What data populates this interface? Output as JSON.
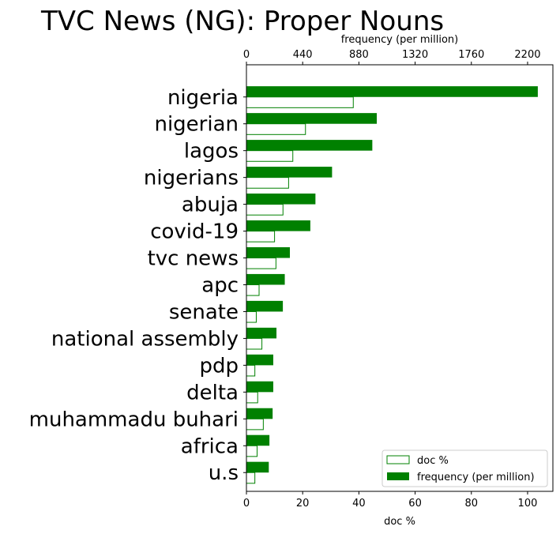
{
  "chart_data": {
    "type": "bar",
    "title": "TVC News (NG): Proper Nouns",
    "categories": [
      "nigeria",
      "nigerian",
      "lagos",
      "nigerians",
      "abuja",
      "covid-19",
      "tvc news",
      "apc",
      "senate",
      "national assembly",
      "pdp",
      "delta",
      "muhammadu buhari",
      "africa",
      "u.s"
    ],
    "series": [
      {
        "name": "doc %",
        "axis": "bottom",
        "style": "outline",
        "values": [
          38,
          21,
          16.5,
          15,
          13,
          10,
          10.5,
          4.5,
          3.5,
          5.5,
          3,
          4,
          6,
          3.8,
          3
        ]
      },
      {
        "name": "frequency (per million)",
        "axis": "top",
        "style": "filled",
        "values": [
          2280,
          1020,
          985,
          670,
          540,
          500,
          340,
          300,
          285,
          235,
          210,
          210,
          205,
          180,
          175
        ]
      }
    ],
    "xlabel": "doc %",
    "x_top_label": "frequency (per million)",
    "x_bottom_ticks": [
      0,
      20,
      40,
      60,
      80,
      100
    ],
    "x_bottom_lim": [
      0,
      109
    ],
    "x_top_ticks": [
      0,
      440,
      880,
      1320,
      1760,
      2200
    ],
    "x_top_lim": [
      0,
      2398
    ],
    "legend": "bottom-right",
    "grid": false,
    "colors": {
      "bar": "#008000",
      "axis": "#000000"
    }
  }
}
